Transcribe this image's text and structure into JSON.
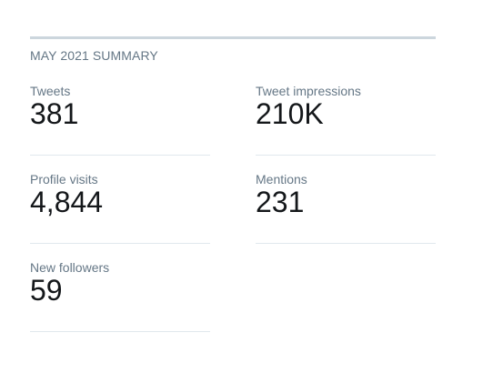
{
  "header": {
    "title": "MAY 2021 SUMMARY"
  },
  "stats": [
    {
      "label": "Tweets",
      "value": "381"
    },
    {
      "label": "Tweet impressions",
      "value": "210K"
    },
    {
      "label": "Profile visits",
      "value": "4,844"
    },
    {
      "label": "Mentions",
      "value": "231"
    },
    {
      "label": "New followers",
      "value": "59"
    }
  ]
}
